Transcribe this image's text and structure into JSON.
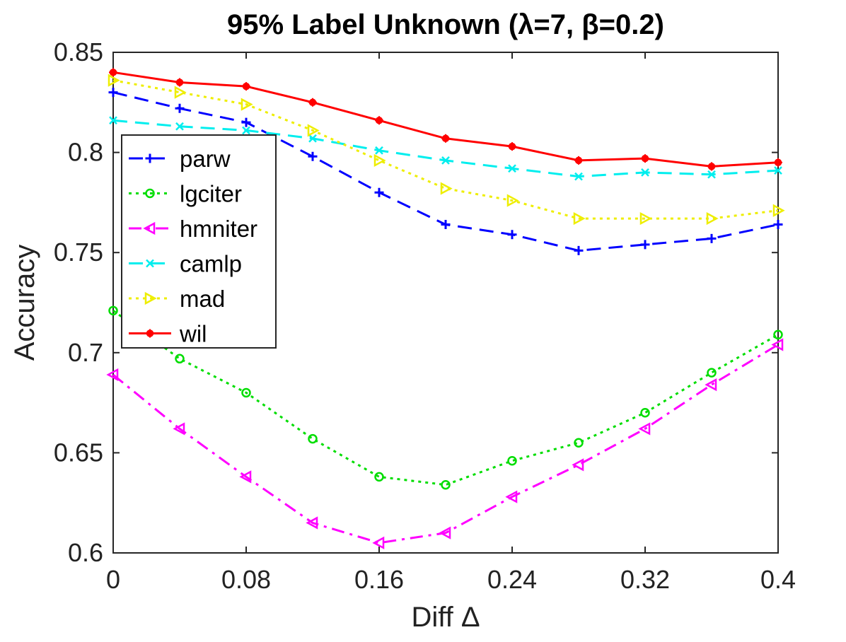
{
  "chart_data": {
    "type": "line",
    "title": "95% Label Unknown (λ=7, β=0.2)",
    "xlabel": "Diff Δ",
    "ylabel": "Accuracy",
    "xlim": [
      0,
      0.4
    ],
    "ylim": [
      0.6,
      0.85
    ],
    "xticks": [
      0,
      0.08,
      0.16,
      0.24,
      0.32,
      0.4
    ],
    "xtick_labels": [
      "0",
      "0.08",
      "0.16",
      "0.24",
      "0.32",
      "0.4"
    ],
    "yticks": [
      0.6,
      0.65,
      0.7,
      0.75,
      0.8,
      0.85
    ],
    "ytick_labels": [
      "0.6",
      "0.65",
      "0.7",
      "0.75",
      "0.8",
      "0.85"
    ],
    "x": [
      0,
      0.04,
      0.08,
      0.12,
      0.16,
      0.2,
      0.24,
      0.28,
      0.32,
      0.36,
      0.4
    ],
    "legend_position": "upper-left",
    "series": [
      {
        "name": "parw",
        "color": "#0000ff",
        "dash": "dashed",
        "marker": "plus",
        "values": [
          0.83,
          0.822,
          0.815,
          0.798,
          0.78,
          0.764,
          0.759,
          0.751,
          0.754,
          0.757,
          0.764
        ]
      },
      {
        "name": "lgciter",
        "color": "#00dd00",
        "dash": "dotted",
        "marker": "circle",
        "values": [
          0.721,
          0.697,
          0.68,
          0.657,
          0.638,
          0.634,
          0.646,
          0.655,
          0.67,
          0.69,
          0.709
        ]
      },
      {
        "name": "hmniter",
        "color": "#ff00ff",
        "dash": "dashdot",
        "marker": "triangle-left",
        "values": [
          0.689,
          0.662,
          0.638,
          0.615,
          0.605,
          0.61,
          0.628,
          0.644,
          0.662,
          0.684,
          0.704
        ]
      },
      {
        "name": "camlp",
        "color": "#00eeee",
        "dash": "dashed",
        "marker": "x",
        "values": [
          0.816,
          0.813,
          0.811,
          0.807,
          0.801,
          0.796,
          0.792,
          0.788,
          0.79,
          0.789,
          0.791
        ]
      },
      {
        "name": "mad",
        "color": "#eeee00",
        "dash": "dotted",
        "marker": "triangle-right",
        "values": [
          0.836,
          0.83,
          0.824,
          0.811,
          0.796,
          0.782,
          0.776,
          0.767,
          0.767,
          0.767,
          0.771
        ]
      },
      {
        "name": "wil",
        "color": "#ff0000",
        "dash": "solid",
        "marker": "star",
        "values": [
          0.84,
          0.835,
          0.833,
          0.825,
          0.816,
          0.807,
          0.803,
          0.796,
          0.797,
          0.793,
          0.795
        ]
      }
    ]
  }
}
